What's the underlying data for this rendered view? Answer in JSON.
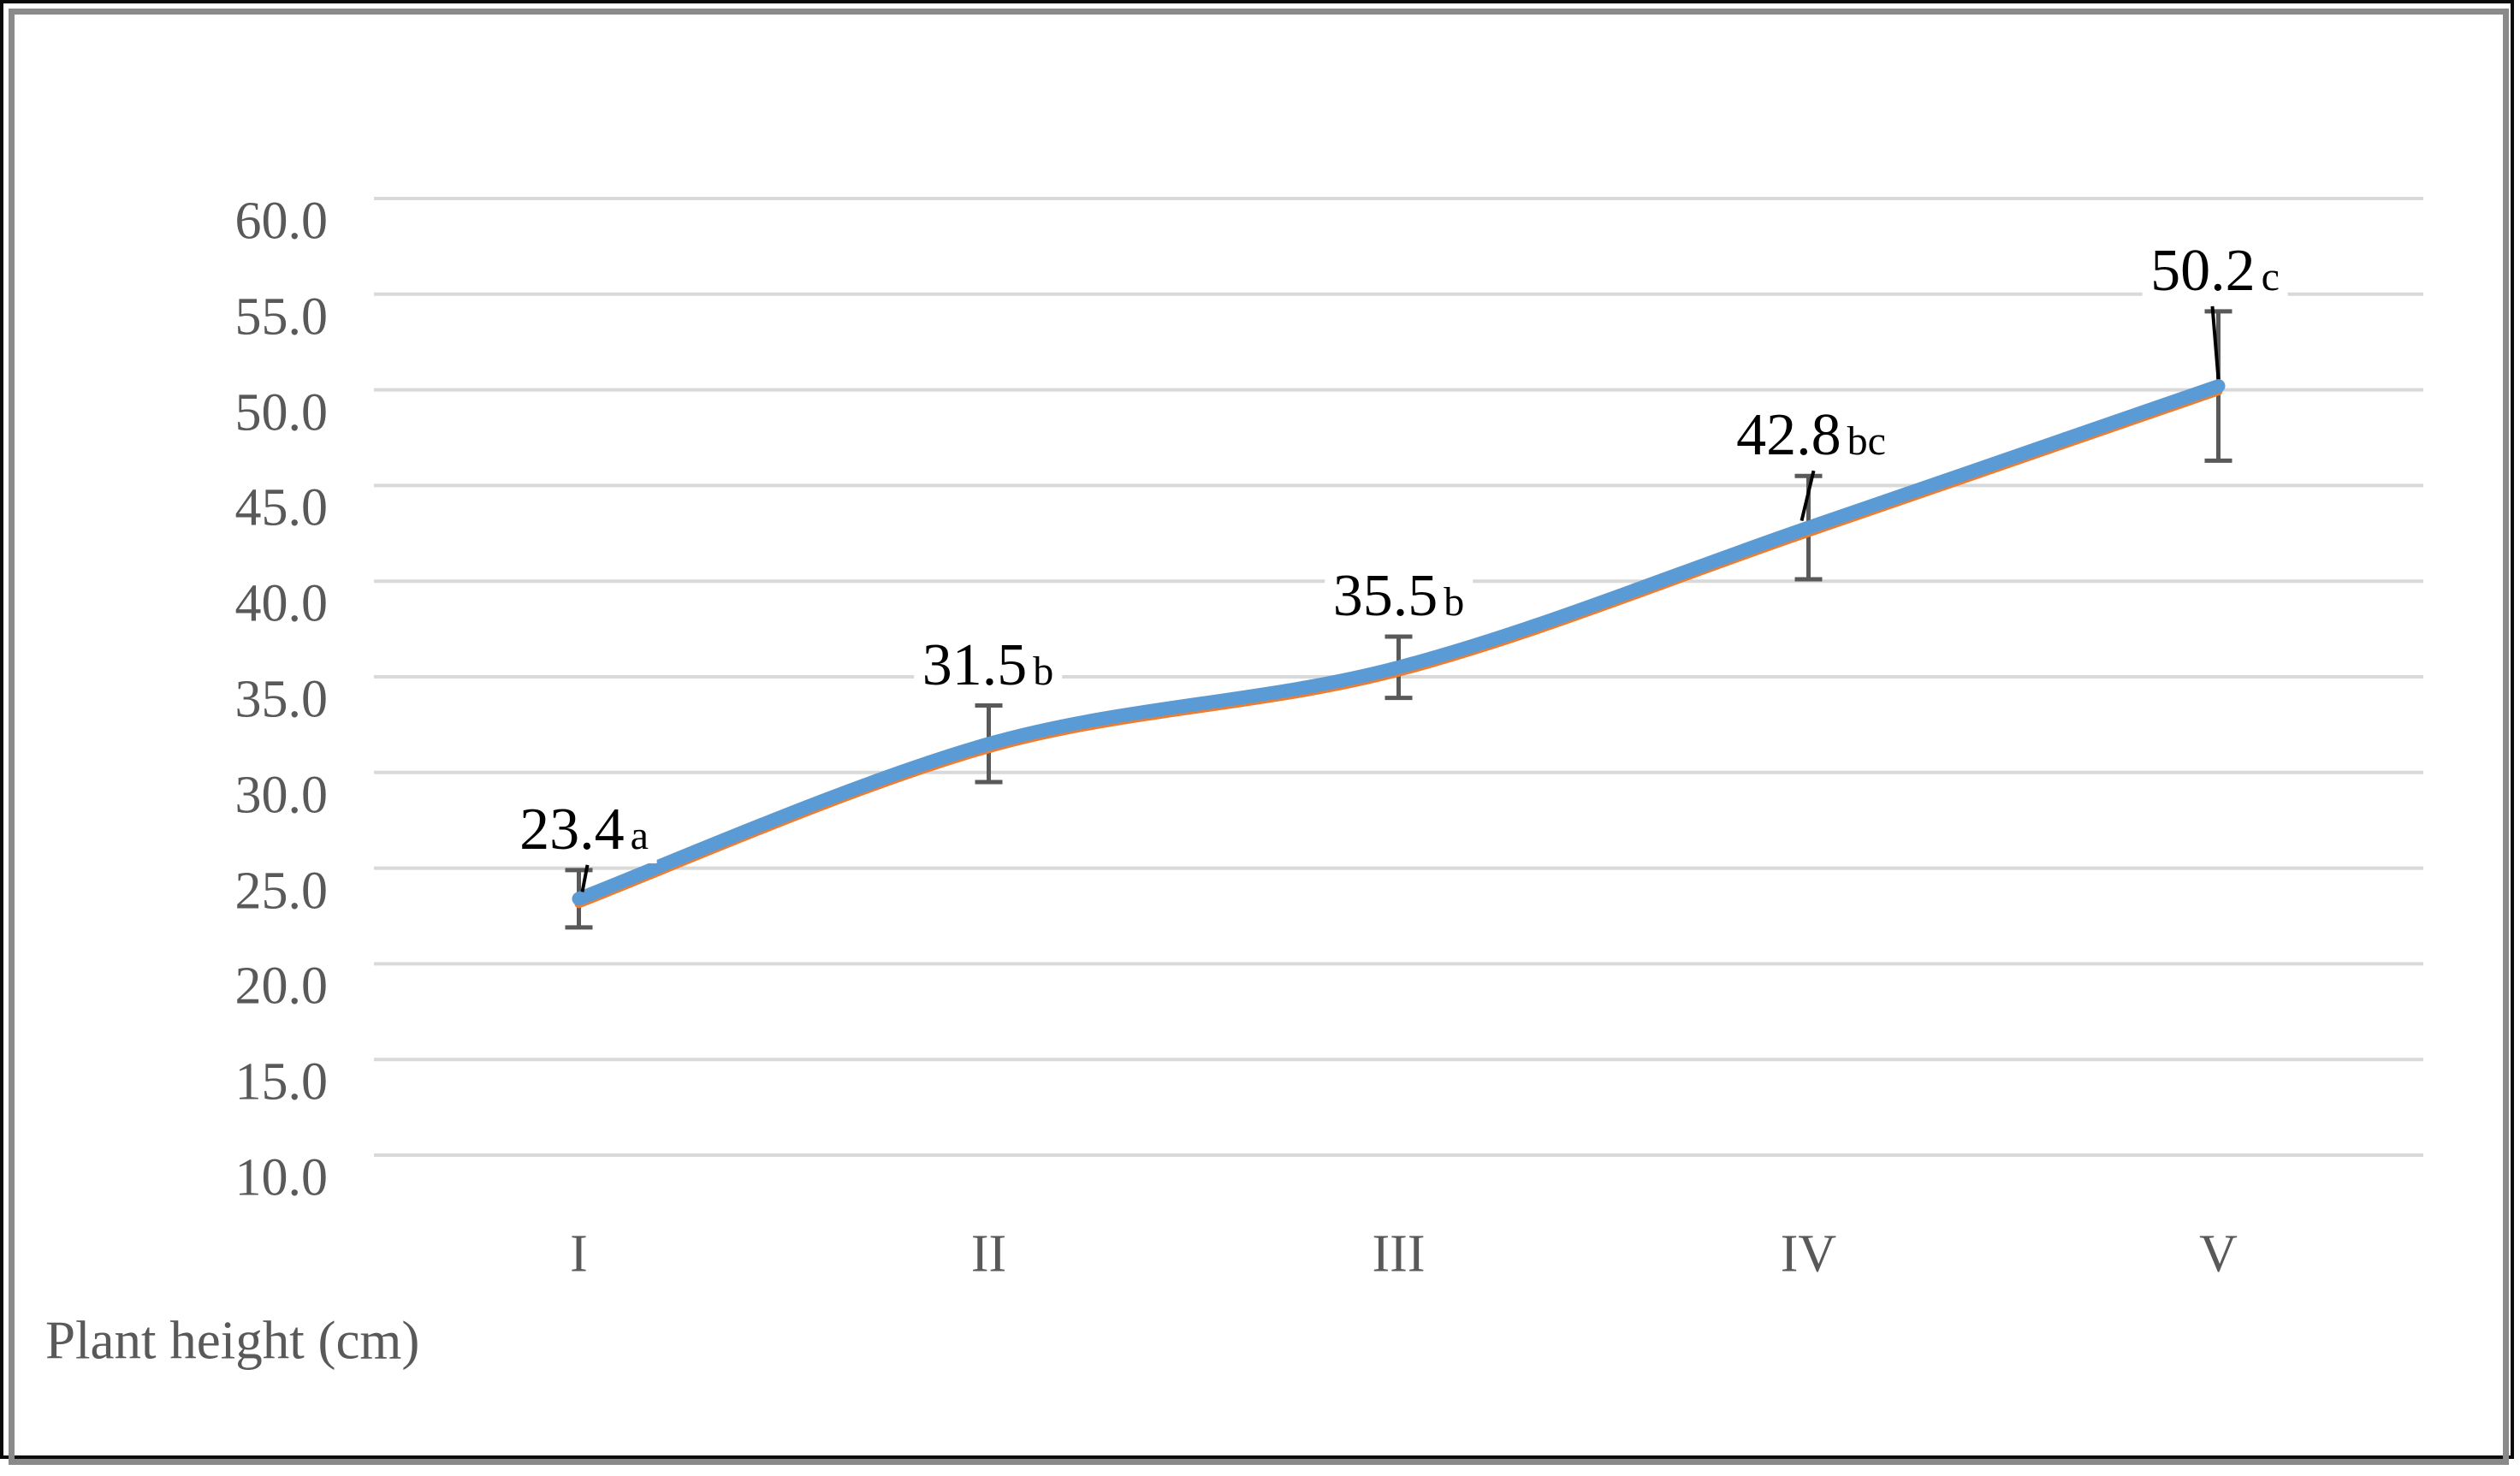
{
  "frame": {
    "background": "#FFFFFF",
    "outer_border_color": "#0B0B0B",
    "inner_border_color": "#8A8A8A"
  },
  "chart_data": {
    "type": "line",
    "title": "",
    "xlabel": "",
    "ylabel": "Plant height (cm)",
    "categories": [
      "I",
      "II",
      "III",
      "IV",
      "V"
    ],
    "series": [
      {
        "name": "plant-height-orange-underlay",
        "color": "#ED7D31",
        "stroke_width": 10,
        "smooth": true,
        "values": [
          23.4,
          31.5,
          35.5,
          42.8,
          50.2
        ]
      },
      {
        "name": "plant-height-main",
        "color": "#5B9BD5",
        "stroke_width": 16,
        "smooth": true,
        "values": [
          23.4,
          31.5,
          35.5,
          42.8,
          50.2
        ]
      }
    ],
    "data_labels": [
      {
        "value": "23.4",
        "suffix": "a"
      },
      {
        "value": "31.5",
        "suffix": "b"
      },
      {
        "value": "35.5",
        "suffix": "b"
      },
      {
        "value": "42.8",
        "suffix": "bc"
      },
      {
        "value": "50.2",
        "suffix": "c"
      }
    ],
    "label_dx": [
      6,
      -1,
      0,
      3,
      -4
    ],
    "error_bars": {
      "color": "#595959",
      "values": [
        1.5,
        2.0,
        1.6,
        2.7,
        3.9
      ]
    },
    "leader_lines": [
      [
        10,
        4
      ],
      null,
      null,
      [
        6,
        -8
      ],
      [
        -7,
        0
      ]
    ],
    "leader_color": "#000000",
    "yaxis": {
      "min": 10,
      "max": 60,
      "step": 5,
      "tick_labels": [
        "60.0",
        "55.0",
        "50.0",
        "45.0",
        "40.0",
        "35.0",
        "30.0",
        "25.0",
        "20.0",
        "15.0",
        "10.0"
      ],
      "text_color": "#595959",
      "gridline_color": "#D9D9D9"
    },
    "xaxis": {
      "labels": [
        "I",
        "II",
        "III",
        "IV",
        "V"
      ],
      "text_color": "#595959"
    },
    "legend": "none",
    "ylim": [
      10,
      60
    ]
  }
}
